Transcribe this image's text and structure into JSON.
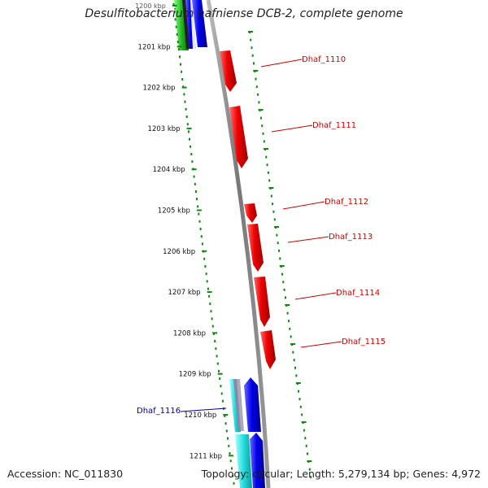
{
  "title": "Desulfitobacterium hafniense DCB-2, complete genome",
  "accession_text": "Accession: NC_011830",
  "topology_text": "Topology: circular; Length: 5,279,134 bp; Genes: 4,972",
  "ruler_ticks": [
    "1200 kbp",
    "1201 kbp",
    "1202 kbp",
    "1203 kbp",
    "1204 kbp",
    "1205 kbp",
    "1206 kbp",
    "1207 kbp",
    "1208 kbp",
    "1209 kbp",
    "1210 kbp",
    "1211 kbp"
  ],
  "gene_labels": [
    {
      "text": "Dhaf_1110",
      "color": "#cc0000"
    },
    {
      "text": "Dhaf_1111",
      "color": "#cc0000"
    },
    {
      "text": "Dhaf_1112",
      "color": "#cc0000"
    },
    {
      "text": "Dhaf_1113",
      "color": "#cc0000"
    },
    {
      "text": "Dhaf_1114",
      "color": "#cc0000"
    },
    {
      "text": "Dhaf_1115",
      "color": "#cc0000"
    },
    {
      "text": "Dhaf_1116",
      "color": "#000099"
    }
  ],
  "colors": {
    "backbone": "#888888",
    "dot_track": "#118811",
    "gene_red": "#ee0000",
    "gene_blue": "#0000ee",
    "gene_green": "#22bb22",
    "gene_cyan": "#22dddd"
  }
}
